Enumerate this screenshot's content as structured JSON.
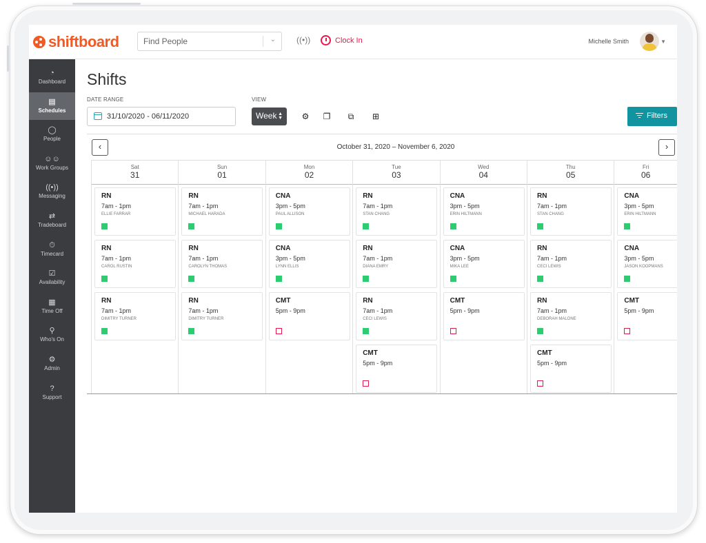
{
  "app": {
    "brand": "shiftboard"
  },
  "header": {
    "find_placeholder": "Find People",
    "clock_in": "Clock In",
    "user_name": "Michelle Smith"
  },
  "sidebar": {
    "items": [
      {
        "label": "Dashboard",
        "icon": "dashboard-icon",
        "active": false
      },
      {
        "label": "Schedules",
        "icon": "calendar-icon",
        "active": true
      },
      {
        "label": "People",
        "icon": "person-icon",
        "active": false
      },
      {
        "label": "Work Groups",
        "icon": "group-icon",
        "active": false
      },
      {
        "label": "Messaging",
        "icon": "broadcast-icon",
        "active": false
      },
      {
        "label": "Tradeboard",
        "icon": "swap-icon",
        "active": false
      },
      {
        "label": "Timecard",
        "icon": "stopwatch-icon",
        "active": false
      },
      {
        "label": "Availability",
        "icon": "calendar-check-icon",
        "active": false
      },
      {
        "label": "Time Off",
        "icon": "calendar-off-icon",
        "active": false
      },
      {
        "label": "Who's On",
        "icon": "person-status-icon",
        "active": false
      },
      {
        "label": "Admin",
        "icon": "admin-icon",
        "active": false
      },
      {
        "label": "Support",
        "icon": "help-icon",
        "active": false
      }
    ]
  },
  "main": {
    "title": "Shifts",
    "date_range_label": "DATE RANGE",
    "date_range_value": "31/10/2020 - 06/11/2020",
    "view_label": "VIEW",
    "view_value": "Week",
    "filters_label": "Filters",
    "range_title": "October 31, 2020 – November 6, 2020"
  },
  "colors": {
    "accent": "#11949f",
    "brand": "#f15a24",
    "filled": "#2ecc71",
    "open": "#e6194b"
  },
  "days": [
    {
      "dow": "Sat",
      "num": "31",
      "shifts": [
        {
          "role": "RN",
          "time": "7am - 1pm",
          "person": "ELLIE FARRAR",
          "status": "filled"
        },
        {
          "role": "RN",
          "time": "7am - 1pm",
          "person": "CAROL RUSTIN",
          "status": "filled"
        },
        {
          "role": "RN",
          "time": "7am - 1pm",
          "person": "DIMITRY TURNER",
          "status": "filled"
        }
      ]
    },
    {
      "dow": "Sun",
      "num": "01",
      "shifts": [
        {
          "role": "RN",
          "time": "7am - 1pm",
          "person": "MICHAEL HARADA",
          "status": "filled"
        },
        {
          "role": "RN",
          "time": "7am - 1pm",
          "person": "CAROLYN THOMAS",
          "status": "filled"
        },
        {
          "role": "RN",
          "time": "7am - 1pm",
          "person": "DIMITRY TURNER",
          "status": "filled"
        }
      ]
    },
    {
      "dow": "Mon",
      "num": "02",
      "shifts": [
        {
          "role": "CNA",
          "time": "3pm - 5pm",
          "person": "PAUL ALLISON",
          "status": "filled"
        },
        {
          "role": "CNA",
          "time": "3pm - 5pm",
          "person": "LYNN ELLIS",
          "status": "filled"
        },
        {
          "role": "CMT",
          "time": "5pm - 9pm",
          "person": "",
          "status": "open"
        }
      ]
    },
    {
      "dow": "Tue",
      "num": "03",
      "shifts": [
        {
          "role": "RN",
          "time": "7am - 1pm",
          "person": "STAN CHANG",
          "status": "filled"
        },
        {
          "role": "RN",
          "time": "7am - 1pm",
          "person": "DIANA EMRY",
          "status": "filled"
        },
        {
          "role": "RN",
          "time": "7am - 1pm",
          "person": "CECI LEWIS",
          "status": "filled"
        },
        {
          "role": "CMT",
          "time": "5pm - 9pm",
          "person": "",
          "status": "open"
        }
      ]
    },
    {
      "dow": "Wed",
      "num": "04",
      "shifts": [
        {
          "role": "CNA",
          "time": "3pm - 5pm",
          "person": "ERIN HILTMANN",
          "status": "filled"
        },
        {
          "role": "CNA",
          "time": "3pm - 5pm",
          "person": "MIKA LEE",
          "status": "filled"
        },
        {
          "role": "CMT",
          "time": "5pm - 9pm",
          "person": "",
          "status": "open"
        }
      ]
    },
    {
      "dow": "Thu",
      "num": "05",
      "shifts": [
        {
          "role": "RN",
          "time": "7am - 1pm",
          "person": "STAN CHANG",
          "status": "filled"
        },
        {
          "role": "RN",
          "time": "7am - 1pm",
          "person": "CECI LEWIS",
          "status": "filled"
        },
        {
          "role": "RN",
          "time": "7am - 1pm",
          "person": "DEBORAH MALONE",
          "status": "filled"
        },
        {
          "role": "CMT",
          "time": "5pm - 9pm",
          "person": "",
          "status": "open"
        }
      ]
    },
    {
      "dow": "Fri",
      "num": "06",
      "shifts": [
        {
          "role": "CNA",
          "time": "3pm - 5pm",
          "person": "ERIN HILTMANN",
          "status": "filled"
        },
        {
          "role": "CNA",
          "time": "3pm - 5pm",
          "person": "JASON KOOPMANS",
          "status": "filled"
        },
        {
          "role": "CMT",
          "time": "5pm - 9pm",
          "person": "",
          "status": "open"
        }
      ]
    }
  ]
}
